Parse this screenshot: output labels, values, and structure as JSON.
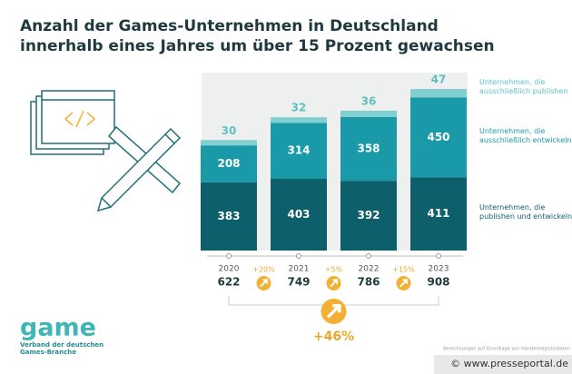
{
  "chart_data": {
    "type": "stacked-bar",
    "title": [
      "Anzahl der Games-Unternehmen in Deutschland",
      "innerhalb eines Jahres um über 15 Prozent gewachsen"
    ],
    "categories": [
      "2020",
      "2021",
      "2022",
      "2023"
    ],
    "series": [
      {
        "name": "Unternehmen, die publishen und entwickeln",
        "color": "#0d5f6b",
        "values": [
          383,
          403,
          392,
          411
        ]
      },
      {
        "name": "Unternehmen, die ausschließlich entwickeln",
        "color": "#1a9aa8",
        "values": [
          208,
          314,
          358,
          450
        ]
      },
      {
        "name": "Unternehmen, die ausschließlich publishen",
        "color": "#82cfd2",
        "values": [
          30,
          32,
          36,
          47
        ]
      }
    ],
    "totals": [
      622,
      749,
      786,
      908
    ],
    "growth_labels": [
      "+20%",
      "+5%",
      "+15%"
    ],
    "total_growth_label": "+46%",
    "logo": "game",
    "logo_subtitle": "Verband der deutschen Games-Branche",
    "source": "Berechnungen auf Grundlage von Handelsregisterdaten",
    "credit": "© www.presseportal.de"
  }
}
